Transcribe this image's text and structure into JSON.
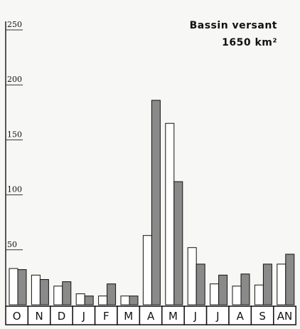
{
  "chart_data": {
    "type": "bar",
    "title": "Bassin versant",
    "subtitle": "1650 km²",
    "categories": [
      "O",
      "N",
      "D",
      "J",
      "F",
      "M",
      "A",
      "M",
      "J",
      "J",
      "A",
      "S",
      "AN"
    ],
    "series": [
      {
        "color": "#ffffff",
        "values": [
          33,
          27,
          17,
          10,
          8,
          8,
          63,
          165,
          52,
          19,
          17,
          18,
          37
        ]
      },
      {
        "color": "#8a8a8a",
        "values": [
          32,
          23,
          21,
          8,
          19,
          8,
          186,
          112,
          37,
          27,
          28,
          37,
          46
        ]
      }
    ],
    "ylim": [
      0,
      250
    ],
    "yticks": [
      50,
      100,
      150,
      200,
      250
    ]
  }
}
